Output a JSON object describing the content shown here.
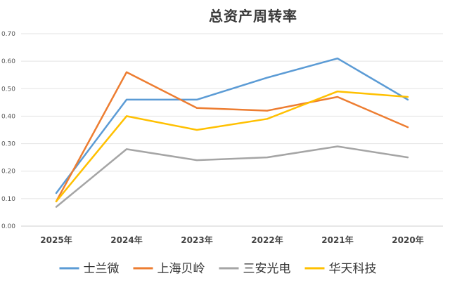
{
  "chart_data": {
    "type": "line",
    "title": "总资产周转率",
    "xlabel": "",
    "ylabel": "",
    "categories": [
      "2025年",
      "2024年",
      "2023年",
      "2022年",
      "2021年",
      "2020年"
    ],
    "ylim": [
      0,
      0.7
    ],
    "yticks": [
      "0.00",
      "0.10",
      "0.20",
      "0.30",
      "0.40",
      "0.50",
      "0.60",
      "0.70"
    ],
    "grid": true,
    "legend_position": "bottom",
    "series": [
      {
        "name": "士兰微",
        "color": "#5b9bd5",
        "values": [
          0.12,
          0.46,
          0.46,
          0.54,
          0.61,
          0.46
        ]
      },
      {
        "name": "上海贝岭",
        "color": "#ed7d31",
        "values": [
          0.09,
          0.56,
          0.43,
          0.42,
          0.47,
          0.36
        ]
      },
      {
        "name": "三安光电",
        "color": "#a5a5a5",
        "values": [
          0.07,
          0.28,
          0.24,
          0.25,
          0.29,
          0.25
        ]
      },
      {
        "name": "华天科技",
        "color": "#ffc000",
        "values": [
          0.09,
          0.4,
          0.35,
          0.39,
          0.49,
          0.47
        ]
      }
    ]
  }
}
